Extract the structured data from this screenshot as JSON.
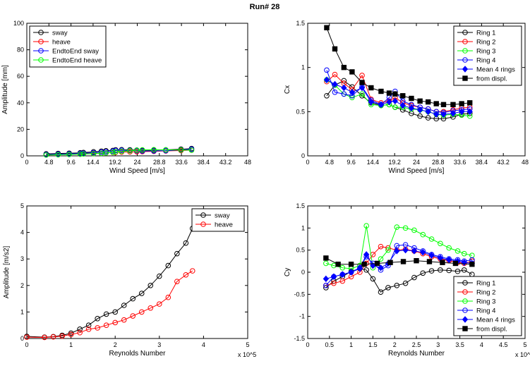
{
  "figure_title": "Run# 28",
  "chart_data": [
    {
      "type": "line",
      "xlabel": "Wind Speed [m/s]",
      "ylabel": "Amplitude [mm]",
      "xlim": [
        0,
        48
      ],
      "ylim": [
        0,
        100
      ],
      "xticks": [
        "0",
        "4.8",
        "9.6",
        "14.4",
        "19.2",
        "24",
        "28.8",
        "33.6",
        "38.4",
        "43.2",
        "48"
      ],
      "yticks": [
        "0",
        "20",
        "40",
        "60",
        "80",
        "100"
      ],
      "legend": "top-left",
      "grid": false,
      "series": [
        {
          "name": "sway",
          "color": "#000000",
          "marker": "o",
          "x": [
            4.2,
            6.8,
            9.2,
            11.6,
            12.3,
            14.5,
            16.2,
            17.2,
            18.7,
            19.3,
            20.6,
            22.4,
            23.9,
            25.1,
            27.6,
            30.2,
            33.5,
            35.8
          ],
          "y": [
            1.5,
            1.8,
            2.0,
            2.3,
            2.5,
            3.0,
            3.5,
            3.8,
            4.0,
            4.5,
            4.6,
            4.5,
            4.3,
            4.2,
            4.3,
            4.5,
            5.0,
            5.5
          ]
        },
        {
          "name": "heave",
          "color": "#ff0000",
          "marker": "o",
          "x": [
            4.2,
            6.8,
            9.2,
            11.6,
            12.3,
            14.5,
            16.2,
            17.2,
            18.7,
            19.3,
            20.6,
            22.4,
            23.9,
            25.1,
            27.6,
            30.2,
            33.5,
            35.8
          ],
          "y": [
            0.8,
            1.0,
            1.2,
            1.4,
            1.6,
            1.8,
            2.0,
            2.2,
            2.5,
            2.7,
            2.9,
            3.0,
            3.1,
            3.2,
            3.4,
            3.7,
            4.0,
            4.3
          ]
        },
        {
          "name": "EndtoEnd sway",
          "color": "#0000ff",
          "marker": "o",
          "x": [
            4.2,
            6.8,
            9.2,
            11.6,
            12.3,
            14.5,
            16.2,
            17.2,
            18.7,
            19.3,
            20.6,
            22.4,
            23.9,
            25.1,
            27.6,
            30.2,
            33.5,
            35.8
          ],
          "y": [
            1.0,
            1.3,
            1.5,
            1.8,
            2.0,
            2.4,
            2.8,
            3.1,
            3.5,
            4.0,
            4.2,
            4.0,
            3.8,
            3.6,
            3.7,
            3.9,
            4.5,
            5.0
          ]
        },
        {
          "name": "EndtoEnd heave",
          "color": "#00ff00",
          "marker": "o",
          "x": [
            4.2,
            6.8,
            9.2,
            11.6,
            12.3,
            14.5,
            16.2,
            17.2,
            18.7,
            19.3,
            20.6,
            22.4,
            23.9,
            25.1,
            27.6,
            30.2,
            33.5,
            35.8
          ],
          "y": [
            0.6,
            0.8,
            1.0,
            1.2,
            1.4,
            1.6,
            1.9,
            2.2,
            2.6,
            3.0,
            3.4,
            3.8,
            4.2,
            4.5,
            4.6,
            4.5,
            4.4,
            4.3
          ]
        }
      ]
    },
    {
      "type": "line",
      "xlabel": "Wind Speed [m/s]",
      "ylabel": "Cx",
      "xlim": [
        0,
        48
      ],
      "ylim": [
        0,
        1.5
      ],
      "xticks": [
        "0",
        "4.8",
        "9.6",
        "14.4",
        "19.2",
        "24",
        "28.8",
        "33.6",
        "38.4",
        "43.2",
        "48"
      ],
      "yticks": [
        "0",
        "0.5",
        "1",
        "1.5"
      ],
      "legend": "top-right",
      "grid": false,
      "series": [
        {
          "name": "Ring 1",
          "color": "#000000",
          "marker": "o",
          "x": [
            4.2,
            6.0,
            8.0,
            9.8,
            12.0,
            14.0,
            16.2,
            18.0,
            19.3,
            21.0,
            22.9,
            24.8,
            26.6,
            28.4,
            30.0,
            32.1,
            34.0,
            35.8
          ],
          "y": [
            0.68,
            0.8,
            0.85,
            0.78,
            0.68,
            0.6,
            0.57,
            0.58,
            0.55,
            0.52,
            0.48,
            0.45,
            0.43,
            0.42,
            0.42,
            0.44,
            0.47,
            0.48
          ]
        },
        {
          "name": "Ring 2",
          "color": "#ff0000",
          "marker": "o",
          "x": [
            4.2,
            6.0,
            8.0,
            9.8,
            12.0,
            14.0,
            16.2,
            18.0,
            19.3,
            21.0,
            22.9,
            24.8,
            26.6,
            28.4,
            30.0,
            32.1,
            34.0,
            35.8
          ],
          "y": [
            0.84,
            0.92,
            0.82,
            0.75,
            0.91,
            0.64,
            0.6,
            0.62,
            0.66,
            0.6,
            0.57,
            0.55,
            0.53,
            0.5,
            0.5,
            0.52,
            0.54,
            0.55
          ]
        },
        {
          "name": "Ring 3",
          "color": "#00ff00",
          "marker": "o",
          "x": [
            4.2,
            6.0,
            8.0,
            9.8,
            12.0,
            14.0,
            16.2,
            18.0,
            19.3,
            21.0,
            22.9,
            24.8,
            26.6,
            28.4,
            30.0,
            32.1,
            34.0,
            35.8
          ],
          "y": [
            0.86,
            0.8,
            0.7,
            0.66,
            0.7,
            0.58,
            0.57,
            0.58,
            0.55,
            0.55,
            0.53,
            0.52,
            0.5,
            0.47,
            0.46,
            0.47,
            0.46,
            0.45
          ]
        },
        {
          "name": "Ring 4",
          "color": "#0000ff",
          "marker": "o",
          "x": [
            4.2,
            6.0,
            8.0,
            9.8,
            12.0,
            14.0,
            16.2,
            18.0,
            19.3,
            21.0,
            22.9,
            24.8,
            26.6,
            28.4,
            30.0,
            32.1,
            34.0,
            35.8
          ],
          "y": [
            0.97,
            0.72,
            0.7,
            0.68,
            0.78,
            0.63,
            0.58,
            0.66,
            0.73,
            0.62,
            0.58,
            0.55,
            0.53,
            0.5,
            0.49,
            0.51,
            0.52,
            0.53
          ]
        },
        {
          "name": "Mean 4 rings",
          "color": "#0000ff",
          "marker": "d",
          "x": [
            4.2,
            6.0,
            8.0,
            9.8,
            12.0,
            14.0,
            16.2,
            18.0,
            19.3,
            21.0,
            22.9,
            24.8,
            26.6,
            28.4,
            30.0,
            32.1,
            34.0,
            35.8
          ],
          "y": [
            0.86,
            0.81,
            0.77,
            0.72,
            0.77,
            0.61,
            0.58,
            0.61,
            0.62,
            0.57,
            0.54,
            0.52,
            0.5,
            0.47,
            0.47,
            0.48,
            0.5,
            0.5
          ]
        },
        {
          "name": "from displ.",
          "color": "#000000",
          "marker": "s",
          "x": [
            4.2,
            6.0,
            8.0,
            9.8,
            12.0,
            14.0,
            16.2,
            18.0,
            19.3,
            21.0,
            22.9,
            24.8,
            26.6,
            28.4,
            30.0,
            32.1,
            34.0,
            35.8
          ],
          "y": [
            1.45,
            1.21,
            1.0,
            0.95,
            0.83,
            0.77,
            0.73,
            0.71,
            0.7,
            0.68,
            0.65,
            0.62,
            0.61,
            0.59,
            0.58,
            0.58,
            0.59,
            0.6
          ]
        }
      ]
    },
    {
      "type": "line",
      "xlabel": "Reynolds Number",
      "ylabel": "Amplitude [m/s2]",
      "x_multiplier": "x 10^5",
      "xlim": [
        0,
        5
      ],
      "ylim": [
        0,
        5
      ],
      "xticks": [
        "0",
        "1",
        "2",
        "3",
        "4",
        "5"
      ],
      "yticks": [
        "0",
        "1",
        "2",
        "3",
        "4",
        "5"
      ],
      "legend": "top-right",
      "grid": false,
      "series": [
        {
          "name": "sway",
          "color": "#000000",
          "marker": "o",
          "x": [
            0.0,
            0.4,
            0.6,
            0.8,
            1.0,
            1.2,
            1.4,
            1.6,
            1.8,
            2.0,
            2.2,
            2.4,
            2.6,
            2.8,
            3.0,
            3.2,
            3.4,
            3.6,
            3.75
          ],
          "y": [
            0.08,
            0.05,
            0.07,
            0.12,
            0.2,
            0.35,
            0.5,
            0.75,
            0.92,
            1.0,
            1.25,
            1.5,
            1.7,
            2.0,
            2.35,
            2.75,
            3.2,
            3.6,
            4.15
          ]
        },
        {
          "name": "heave",
          "color": "#ff0000",
          "marker": "o",
          "x": [
            0.0,
            0.4,
            0.6,
            0.8,
            1.0,
            1.2,
            1.4,
            1.6,
            1.8,
            2.0,
            2.2,
            2.4,
            2.6,
            2.8,
            3.0,
            3.2,
            3.4,
            3.6,
            3.75
          ],
          "y": [
            0.05,
            0.04,
            0.06,
            0.09,
            0.15,
            0.22,
            0.35,
            0.4,
            0.5,
            0.6,
            0.7,
            0.85,
            1.0,
            1.15,
            1.3,
            1.55,
            2.15,
            2.4,
            2.55
          ]
        }
      ]
    },
    {
      "type": "line",
      "xlabel": "Reynolds Number",
      "ylabel": "Cy",
      "x_multiplier": "x 10^5",
      "xlim": [
        0,
        5
      ],
      "ylim": [
        -1.5,
        1.5
      ],
      "xticks": [
        "0",
        "0.5",
        "1",
        "1.5",
        "2",
        "2.5",
        "3",
        "3.5",
        "4",
        "4.5",
        "5"
      ],
      "yticks": [
        "-1.5",
        "-1",
        "-0.5",
        "0",
        "0.5",
        "1",
        "1.5"
      ],
      "legend": "bottom-right",
      "grid": false,
      "series": [
        {
          "name": "Ring 1",
          "color": "#000000",
          "marker": "o",
          "x": [
            0.42,
            0.6,
            0.8,
            1.0,
            1.2,
            1.35,
            1.5,
            1.68,
            1.85,
            2.05,
            2.25,
            2.45,
            2.65,
            2.85,
            3.05,
            3.25,
            3.45,
            3.6,
            3.78
          ],
          "y": [
            -0.35,
            -0.2,
            -0.1,
            0.02,
            0.08,
            0.05,
            -0.15,
            -0.45,
            -0.35,
            -0.3,
            -0.25,
            -0.12,
            -0.02,
            0.03,
            0.05,
            0.04,
            0.02,
            0.05,
            -0.05
          ]
        },
        {
          "name": "Ring 2",
          "color": "#ff0000",
          "marker": "o",
          "x": [
            0.42,
            0.6,
            0.8,
            1.0,
            1.2,
            1.35,
            1.5,
            1.68,
            1.85,
            2.05,
            2.25,
            2.45,
            2.65,
            2.85,
            3.05,
            3.25,
            3.45,
            3.6,
            3.78
          ],
          "y": [
            -0.3,
            -0.25,
            -0.2,
            -0.1,
            0.0,
            0.2,
            0.4,
            0.58,
            0.55,
            0.5,
            0.52,
            0.48,
            0.42,
            0.35,
            0.3,
            0.26,
            0.22,
            0.2,
            0.25
          ]
        },
        {
          "name": "Ring 3",
          "color": "#00ff00",
          "marker": "o",
          "x": [
            0.42,
            0.6,
            0.8,
            1.0,
            1.2,
            1.35,
            1.5,
            1.68,
            1.85,
            2.05,
            2.25,
            2.45,
            2.65,
            2.85,
            3.05,
            3.25,
            3.45,
            3.6,
            3.78
          ],
          "y": [
            0.2,
            0.15,
            0.1,
            0.08,
            0.15,
            1.05,
            0.1,
            0.3,
            0.5,
            1.02,
            1.0,
            0.95,
            0.85,
            0.75,
            0.65,
            0.55,
            0.48,
            0.42,
            0.38
          ]
        },
        {
          "name": "Ring 4",
          "color": "#0000ff",
          "marker": "o",
          "x": [
            0.42,
            0.6,
            0.8,
            1.0,
            1.2,
            1.35,
            1.5,
            1.68,
            1.85,
            2.05,
            2.25,
            2.45,
            2.65,
            2.85,
            3.05,
            3.25,
            3.45,
            3.6,
            3.78
          ],
          "y": [
            -0.3,
            -0.1,
            -0.05,
            0.0,
            0.1,
            0.35,
            0.2,
            0.05,
            0.15,
            0.6,
            0.62,
            0.55,
            0.48,
            0.4,
            0.35,
            0.3,
            0.28,
            0.25,
            0.28
          ]
        },
        {
          "name": "Mean 4 rings",
          "color": "#0000ff",
          "marker": "d",
          "x": [
            0.42,
            0.6,
            0.8,
            1.0,
            1.2,
            1.35,
            1.5,
            1.68,
            1.85,
            2.05,
            2.25,
            2.45,
            2.65,
            2.85,
            3.05,
            3.25,
            3.45,
            3.6,
            3.78
          ],
          "y": [
            -0.15,
            -0.1,
            -0.05,
            0.0,
            0.08,
            0.4,
            0.15,
            0.1,
            0.2,
            0.48,
            0.5,
            0.48,
            0.45,
            0.38,
            0.32,
            0.28,
            0.25,
            0.22,
            0.2
          ]
        },
        {
          "name": "from displ.",
          "color": "#000000",
          "marker": "s",
          "x": [
            0.42,
            0.7,
            1.0,
            1.3,
            1.6,
            1.9,
            2.2,
            2.5,
            2.8,
            3.1,
            3.4,
            3.78
          ],
          "y": [
            0.32,
            0.18,
            0.18,
            0.18,
            0.2,
            0.22,
            0.24,
            0.26,
            0.24,
            0.22,
            0.2,
            0.18
          ]
        }
      ]
    }
  ]
}
